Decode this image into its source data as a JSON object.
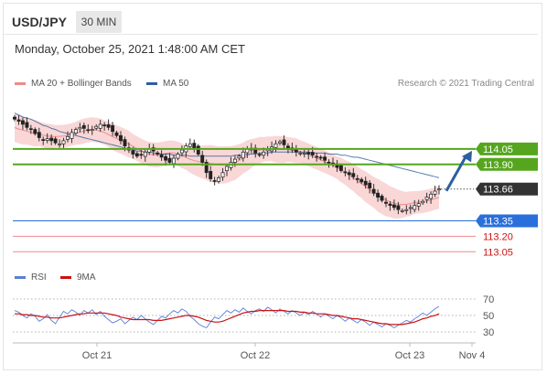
{
  "header": {
    "symbol": "USD/JPY",
    "timeframe": "30 MIN",
    "datetime": "Monday, October 25, 2021 1:48:00 AM CET"
  },
  "legend": {
    "bollinger": {
      "label": "MA 20 + Bollinger Bands",
      "color": "#f08a8a"
    },
    "ma50": {
      "label": "MA 50",
      "color": "#2c5f9e"
    },
    "credit": "Research © 2021 Trading Central"
  },
  "rsi_legend": {
    "rsi": {
      "label": "RSI",
      "color": "#5b7fd6"
    },
    "ma9": {
      "label": "9MA",
      "color": "#cc1111"
    }
  },
  "chart_data": [
    {
      "type": "candlestick",
      "title": "USD/JPY",
      "x_ticks": [
        "Oct 21",
        "Oct 22",
        "Oct 23",
        "Nov 4"
      ],
      "ylim": [
        112.99,
        114.61
      ],
      "levels": [
        {
          "value": "114.05",
          "num": 114.05,
          "kind": "resistance",
          "color": "#55a61e",
          "label_bg": "#55a61e",
          "label_color": "#ffffff"
        },
        {
          "value": "113.90",
          "num": 113.9,
          "kind": "resistance",
          "color": "#55a61e",
          "label_bg": "#55a61e",
          "label_color": "#ffffff"
        },
        {
          "value": "113.66",
          "num": 113.66,
          "kind": "last",
          "color": "#333333",
          "label_bg": "#333333",
          "label_color": "#ffffff"
        },
        {
          "value": "113.35",
          "num": 113.35,
          "kind": "pivot",
          "color": "#2a6fdb",
          "label_bg": "#2a6fdb",
          "label_color": "#ffffff"
        },
        {
          "value": "113.20",
          "num": 113.2,
          "kind": "support",
          "color": "#f08a8a",
          "label_bg": "none",
          "label_color": "#cc1111"
        },
        {
          "value": "113.05",
          "num": 113.05,
          "kind": "support",
          "color": "#f08a8a",
          "label_bg": "none",
          "label_color": "#cc1111"
        }
      ],
      "closes": [
        114.34,
        114.32,
        114.29,
        114.26,
        114.24,
        114.2,
        114.16,
        114.14,
        114.15,
        114.13,
        114.11,
        114.1,
        114.13,
        114.17,
        114.21,
        114.24,
        114.26,
        114.25,
        114.23,
        114.24,
        114.27,
        114.29,
        114.28,
        114.26,
        114.22,
        114.18,
        114.13,
        114.08,
        114.04,
        114.0,
        113.98,
        113.99,
        114.02,
        114.05,
        114.03,
        114.0,
        113.97,
        113.94,
        113.92,
        113.96,
        114.0,
        114.04,
        114.08,
        114.1,
        114.06,
        114.0,
        113.92,
        113.82,
        113.76,
        113.74,
        113.77,
        113.82,
        113.88,
        113.92,
        113.95,
        113.98,
        114.02,
        114.05,
        114.04,
        114.01,
        113.99,
        114.02,
        114.05,
        114.07,
        114.1,
        114.12,
        114.09,
        114.06,
        114.04,
        114.02,
        114.01,
        114.01,
        114.0,
        113.99,
        113.97,
        113.96,
        113.94,
        113.92,
        113.9,
        113.87,
        113.84,
        113.82,
        113.8,
        113.78,
        113.76,
        113.73,
        113.7,
        113.67,
        113.62,
        113.58,
        113.55,
        113.52,
        113.5,
        113.48,
        113.46,
        113.45,
        113.46,
        113.48,
        113.5,
        113.52,
        113.54,
        113.58,
        113.61,
        113.64,
        113.66
      ],
      "ma50": [
        114.4,
        114.38,
        114.36,
        114.35,
        114.34,
        114.32,
        114.3,
        114.28,
        114.27,
        114.25,
        114.24,
        114.22,
        114.21,
        114.2,
        114.19,
        114.18,
        114.17,
        114.16,
        114.15,
        114.14,
        114.13,
        114.12,
        114.11,
        114.1,
        114.09,
        114.08,
        114.07,
        114.06,
        114.05,
        114.04,
        114.03,
        114.03,
        114.02,
        114.02,
        114.01,
        114.01,
        114.0,
        114.0,
        114.0,
        113.99,
        113.99,
        113.99,
        113.99,
        113.98,
        113.98,
        113.98,
        113.98,
        113.98,
        113.98,
        113.98,
        113.98,
        113.98,
        113.98,
        113.98,
        113.99,
        113.99,
        113.99,
        114.0,
        114.0,
        114.0,
        114.01,
        114.01,
        114.01,
        114.02,
        114.02,
        114.02,
        114.02,
        114.02,
        114.02,
        114.02,
        114.02,
        114.02,
        114.02,
        114.01,
        114.01,
        114.01,
        114.01,
        114.0,
        114.0,
        114.0,
        113.99,
        113.99,
        113.98,
        113.97,
        113.97,
        113.96,
        113.95,
        113.94,
        113.93,
        113.92,
        113.91,
        113.9,
        113.89,
        113.88,
        113.87,
        113.86,
        113.85,
        113.84,
        113.83,
        113.82,
        113.81,
        113.8,
        113.79,
        113.78,
        113.77
      ],
      "band_width": [
        0.14,
        0.14,
        0.14,
        0.13,
        0.13,
        0.13,
        0.12,
        0.12,
        0.12,
        0.12,
        0.11,
        0.11,
        0.11,
        0.11,
        0.11,
        0.11,
        0.12,
        0.12,
        0.12,
        0.12,
        0.12,
        0.12,
        0.12,
        0.12,
        0.13,
        0.13,
        0.13,
        0.13,
        0.13,
        0.12,
        0.12,
        0.12,
        0.12,
        0.12,
        0.12,
        0.12,
        0.12,
        0.12,
        0.12,
        0.12,
        0.12,
        0.12,
        0.12,
        0.13,
        0.14,
        0.15,
        0.16,
        0.17,
        0.18,
        0.18,
        0.18,
        0.18,
        0.18,
        0.17,
        0.17,
        0.16,
        0.15,
        0.15,
        0.14,
        0.13,
        0.13,
        0.12,
        0.12,
        0.12,
        0.13,
        0.13,
        0.13,
        0.12,
        0.12,
        0.12,
        0.11,
        0.11,
        0.11,
        0.11,
        0.11,
        0.11,
        0.11,
        0.11,
        0.11,
        0.11,
        0.12,
        0.12,
        0.13,
        0.13,
        0.14,
        0.14,
        0.15,
        0.15,
        0.15,
        0.16,
        0.16,
        0.16,
        0.15,
        0.15,
        0.14,
        0.13,
        0.12,
        0.12,
        0.11,
        0.11,
        0.11,
        0.11,
        0.11,
        0.11,
        0.11
      ]
    },
    {
      "type": "line",
      "title": "RSI",
      "x_ticks": [
        "Oct 21",
        "Oct 22",
        "Oct 23",
        "Nov 4"
      ],
      "y_ticks": [
        "70",
        "50",
        "30"
      ],
      "ylim": [
        20,
        80
      ],
      "series": [
        {
          "name": "RSI",
          "color": "#5b7fd6",
          "values": [
            56,
            54,
            50,
            47,
            52,
            49,
            43,
            46,
            51,
            44,
            40,
            48,
            55,
            52,
            57,
            54,
            50,
            56,
            53,
            57,
            51,
            55,
            49,
            45,
            41,
            43,
            46,
            40,
            44,
            48,
            45,
            50,
            46,
            42,
            39,
            44,
            49,
            47,
            52,
            56,
            53,
            58,
            55,
            49,
            45,
            40,
            37,
            35,
            42,
            48,
            46,
            51,
            56,
            53,
            57,
            54,
            59,
            55,
            52,
            56,
            58,
            55,
            60,
            57,
            53,
            58,
            55,
            52,
            56,
            53,
            50,
            54,
            51,
            55,
            52,
            48,
            52,
            49,
            46,
            50,
            47,
            43,
            47,
            44,
            41,
            45,
            42,
            38,
            42,
            39,
            36,
            40,
            38,
            35,
            38,
            41,
            44,
            42,
            46,
            49,
            53,
            50,
            54,
            58,
            61
          ]
        },
        {
          "name": "9MA",
          "color": "#cc1111",
          "values": [
            52,
            52,
            51,
            51,
            50,
            50,
            49,
            48,
            48,
            47,
            47,
            47,
            48,
            49,
            50,
            51,
            52,
            52,
            53,
            53,
            53,
            53,
            53,
            52,
            51,
            50,
            48,
            47,
            46,
            45,
            45,
            45,
            45,
            45,
            44,
            44,
            44,
            45,
            46,
            47,
            48,
            49,
            50,
            50,
            49,
            48,
            46,
            44,
            43,
            42,
            42,
            43,
            45,
            47,
            49,
            51,
            53,
            54,
            55,
            55,
            56,
            56,
            56,
            56,
            56,
            56,
            56,
            55,
            55,
            55,
            54,
            54,
            53,
            53,
            52,
            52,
            52,
            51,
            50,
            50,
            49,
            48,
            47,
            46,
            46,
            45,
            44,
            43,
            42,
            41,
            40,
            40,
            39,
            39,
            39,
            39,
            40,
            41,
            42,
            44,
            46,
            47,
            49,
            50,
            52
          ]
        }
      ]
    }
  ]
}
